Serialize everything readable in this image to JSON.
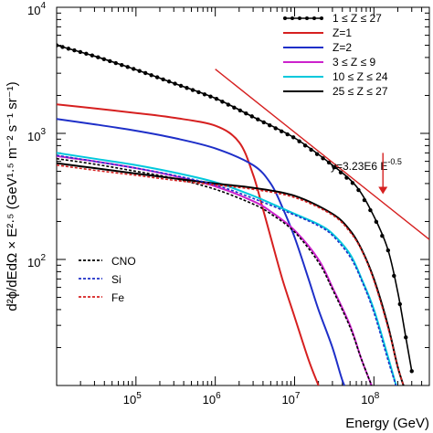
{
  "chart_data": {
    "type": "line",
    "xlabel": "Energy (GeV)",
    "ylabel": "d²ϕ/dEdΩ × E²·⁵ (GeV¹·⁵ m⁻² s⁻¹ sr⁻¹)",
    "x_scale": "log",
    "y_scale": "log",
    "xlim": [
      10000,
      500000000
    ],
    "ylim": [
      10,
      10000
    ],
    "x_ticks": [
      {
        "value": 100000,
        "label": "10",
        "exp": "5"
      },
      {
        "value": 1000000,
        "label": "10",
        "exp": "6"
      },
      {
        "value": 10000000,
        "label": "10",
        "exp": "7"
      },
      {
        "value": 100000000,
        "label": "10",
        "exp": "8"
      }
    ],
    "y_ticks": [
      {
        "value": 100,
        "label": "10",
        "exp": "2"
      },
      {
        "value": 1000,
        "label": "10",
        "exp": "3"
      },
      {
        "value": 10000,
        "label": "10",
        "exp": "4"
      }
    ],
    "grid": false,
    "legend": "top-right",
    "series": [
      {
        "name": "1 ≤ Z ≤ 27",
        "color": "#000000",
        "style": "dot-line",
        "group": "main",
        "x": [
          10000,
          30000,
          100000,
          300000,
          1000000,
          3000000,
          10000000,
          30000000,
          60000000,
          100000000,
          150000000,
          200000000,
          250000000,
          300000000
        ],
        "y": [
          5000,
          4100,
          3200,
          2500,
          1900,
          1350,
          920,
          560,
          380,
          220,
          120,
          55,
          25,
          13
        ]
      },
      {
        "name": "Z=1",
        "color": "#d62020",
        "style": "solid",
        "group": "main",
        "x": [
          10000,
          30000,
          100000,
          300000,
          1000000,
          2000000,
          3000000,
          4000000,
          5000000,
          7000000,
          10000000,
          15000000,
          20000000,
          25000000
        ],
        "y": [
          1700,
          1580,
          1450,
          1330,
          1150,
          850,
          470,
          250,
          150,
          70,
          35,
          16,
          10,
          7
        ]
      },
      {
        "name": "Z=2",
        "color": "#1e2fc8",
        "style": "solid",
        "group": "main",
        "x": [
          10000,
          30000,
          100000,
          300000,
          1000000,
          3000000,
          5000000,
          7000000,
          10000000,
          15000000,
          20000000,
          30000000,
          40000000,
          50000000
        ],
        "y": [
          1300,
          1180,
          1050,
          920,
          760,
          560,
          400,
          260,
          150,
          70,
          40,
          20,
          11,
          8
        ]
      },
      {
        "name": "3 ≤ Z ≤ 9",
        "color": "#cc22cc",
        "style": "solid",
        "group": "main",
        "x": [
          10000,
          30000,
          100000,
          300000,
          1000000,
          3000000,
          5000000,
          10000000,
          20000000,
          30000000,
          50000000,
          70000000,
          100000000
        ],
        "y": [
          660,
          600,
          530,
          460,
          380,
          290,
          240,
          170,
          100,
          60,
          30,
          16,
          9
        ]
      },
      {
        "name": "10 ≤ Z ≤ 24",
        "color": "#00c8dc",
        "style": "solid",
        "group": "main",
        "x": [
          10000,
          30000,
          100000,
          300000,
          1000000,
          3000000,
          10000000,
          20000000,
          30000000,
          50000000,
          70000000,
          100000000,
          150000000,
          200000000
        ],
        "y": [
          700,
          630,
          560,
          490,
          410,
          320,
          230,
          190,
          160,
          110,
          70,
          40,
          17,
          9
        ]
      },
      {
        "name": "25 ≤ Z ≤ 27",
        "color": "#000000",
        "style": "solid",
        "group": "main",
        "x": [
          10000,
          30000,
          100000,
          300000,
          1000000,
          3000000,
          10000000,
          30000000,
          50000000,
          70000000,
          100000000,
          150000000,
          200000000,
          250000000
        ],
        "y": [
          580,
          530,
          480,
          440,
          400,
          370,
          320,
          230,
          170,
          120,
          70,
          30,
          14,
          9
        ]
      },
      {
        "name": "CNO",
        "color": "#000000",
        "style": "dashed",
        "group": "model",
        "x": [
          10000,
          30000,
          100000,
          300000,
          1000000,
          3000000,
          5000000,
          10000000,
          20000000,
          30000000,
          50000000,
          70000000,
          100000000
        ],
        "y": [
          630,
          570,
          500,
          440,
          360,
          275,
          230,
          165,
          95,
          58,
          29,
          16,
          9
        ]
      },
      {
        "name": "Si",
        "color": "#1e2fc8",
        "style": "dashed",
        "group": "model",
        "x": [
          10000,
          30000,
          100000,
          300000,
          1000000,
          3000000,
          10000000,
          20000000,
          30000000,
          50000000,
          70000000,
          100000000,
          150000000,
          200000000
        ],
        "y": [
          670,
          600,
          530,
          465,
          390,
          305,
          225,
          185,
          155,
          105,
          68,
          38,
          16,
          9
        ]
      },
      {
        "name": "Fe",
        "color": "#d62020",
        "style": "dashed",
        "group": "model",
        "x": [
          10000,
          30000,
          100000,
          300000,
          1000000,
          3000000,
          10000000,
          30000000,
          50000000,
          70000000,
          100000000,
          150000000,
          200000000,
          250000000
        ],
        "y": [
          560,
          510,
          465,
          425,
          390,
          360,
          310,
          225,
          165,
          118,
          68,
          29,
          14,
          9
        ]
      }
    ],
    "fit_line": {
      "label": "y=3.23E6 E",
      "label_exp": "-0.5",
      "color": "#d62020",
      "x": [
        1000000,
        500000000
      ],
      "y": [
        3230,
        144
      ]
    },
    "annotation_arrow": {
      "x": 130000000,
      "y_from": 700,
      "y_to": 330,
      "color": "#d62020"
    }
  }
}
